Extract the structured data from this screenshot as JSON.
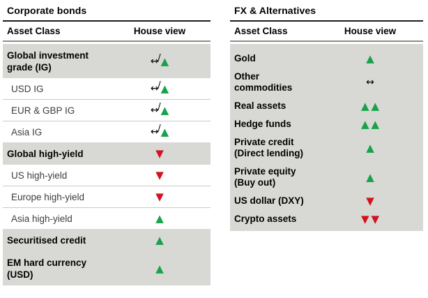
{
  "colors": {
    "positive_green": "#18a24b",
    "negative_red": "#d2121c",
    "row_shade": "#d8d8d4",
    "separator": "#c9c9c9",
    "title_rule": "#1c1c1c",
    "header_rule": "#8c8c8c"
  },
  "icon_map": {
    "up": {
      "name": "up-triangle-icon",
      "glyph": "▲",
      "color": "#18a24b"
    },
    "down": {
      "name": "down-triangle-icon",
      "glyph": "▼",
      "color": "#d2121c"
    },
    "neutral": {
      "name": "sideways-arrow-icon",
      "glyph": "↔",
      "color": "#000000"
    },
    "neutral-crossed": {
      "name": "crossed-sideways-arrow-icon",
      "glyph": "↔",
      "slash": "/",
      "color": "#000000"
    }
  },
  "tables": [
    {
      "id": "corporate-bonds",
      "title": "Corporate bonds",
      "columns": {
        "asset_class": "Asset Class",
        "house_view": "House view"
      },
      "rows": [
        {
          "label": "Global investment grade (IG)",
          "emphasis": true,
          "icons": [
            "neutral-crossed",
            "up"
          ]
        },
        {
          "label": "USD IG",
          "emphasis": false,
          "icons": [
            "neutral-crossed",
            "up"
          ]
        },
        {
          "label": "EUR & GBP IG",
          "emphasis": false,
          "icons": [
            "neutral-crossed",
            "up"
          ]
        },
        {
          "label": "Asia IG",
          "emphasis": false,
          "icons": [
            "neutral-crossed",
            "up"
          ]
        },
        {
          "label": "Global high-yield",
          "emphasis": true,
          "icons": [
            "down"
          ]
        },
        {
          "label": "US high-yield",
          "emphasis": false,
          "icons": [
            "down"
          ]
        },
        {
          "label": "Europe high-yield",
          "emphasis": false,
          "icons": [
            "down"
          ]
        },
        {
          "label": "Asia high-yield",
          "emphasis": false,
          "icons": [
            "up"
          ]
        },
        {
          "label": "Securitised credit",
          "emphasis": true,
          "icons": [
            "up"
          ]
        },
        {
          "label": "EM hard currency (USD)",
          "emphasis": true,
          "icons": [
            "up"
          ]
        }
      ]
    },
    {
      "id": "fx-alternatives",
      "title": "FX & Alternatives",
      "columns": {
        "asset_class": "Asset Class",
        "house_view": "House view"
      },
      "rows": [
        {
          "label": "Gold",
          "emphasis": true,
          "icons": [
            "up"
          ]
        },
        {
          "label": "Other commodities",
          "emphasis": true,
          "icons": [
            "neutral"
          ]
        },
        {
          "label": "Real assets",
          "emphasis": true,
          "icons": [
            "up",
            "up"
          ]
        },
        {
          "label": "Hedge funds",
          "emphasis": true,
          "icons": [
            "up",
            "up"
          ]
        },
        {
          "label": "Private credit (Direct lending)",
          "emphasis": true,
          "icons": [
            "up"
          ]
        },
        {
          "label": "Private equity (Buy out)",
          "emphasis": true,
          "icons": [
            "up"
          ]
        },
        {
          "label": "US dollar (DXY)",
          "emphasis": true,
          "icons": [
            "down"
          ]
        },
        {
          "label": "Crypto assets",
          "emphasis": true,
          "icons": [
            "down",
            "down"
          ]
        }
      ]
    }
  ]
}
